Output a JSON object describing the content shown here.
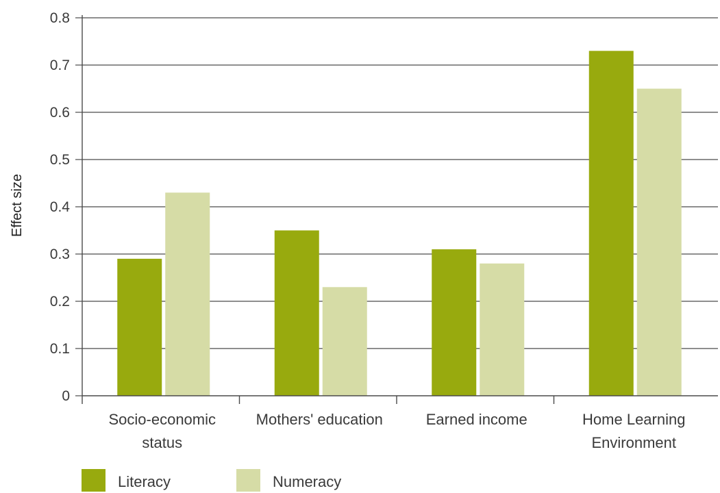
{
  "chart_data": {
    "type": "bar",
    "title": "",
    "xlabel": "",
    "ylabel": "Effect size",
    "ylim": [
      0,
      0.8
    ],
    "yticks": [
      "0",
      "0.1",
      "0.2",
      "0.3",
      "0.4",
      "0.5",
      "0.6",
      "0.7",
      "0.8"
    ],
    "grid": true,
    "legend_position": "bottom-left",
    "categories": [
      [
        "Socio-economic",
        "status"
      ],
      [
        "Mothers' education"
      ],
      [
        "Earned income"
      ],
      [
        "Home Learning",
        "Environment"
      ]
    ],
    "series": [
      {
        "name": "Literacy",
        "color": "#98aa0e",
        "values": [
          0.29,
          0.35,
          0.31,
          0.73
        ]
      },
      {
        "name": "Numeracy",
        "color": "#d6dca6",
        "values": [
          0.43,
          0.23,
          0.28,
          0.65
        ]
      }
    ]
  }
}
